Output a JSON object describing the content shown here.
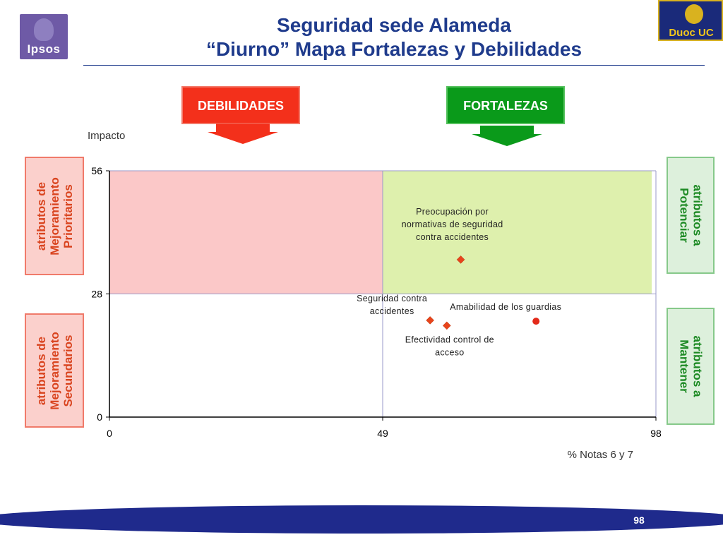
{
  "header": {
    "title_line1": "Seguridad sede Alameda",
    "title_line2": "“Diurno” Mapa Fortalezas y Debilidades"
  },
  "logos": {
    "left": "Ipsos",
    "right": "Duoc UC"
  },
  "banners": {
    "left": "DEBILIDADES",
    "right": "FORTALEZAS"
  },
  "side_boxes": {
    "left_top": [
      "atributos de",
      "Mejoramiento",
      "Prioritarios"
    ],
    "left_bottom": [
      "atributos de",
      "Mejoramiento",
      "Secundarios"
    ],
    "right_top": [
      "atributos a",
      "Potenciar"
    ],
    "right_bottom": [
      "atributos a",
      "Mantener"
    ]
  },
  "colors": {
    "title": "#1f3b8c",
    "debilidades": "#f3301b",
    "fortalezas": "#0a9a1a",
    "quadrant_top_left": "#fbc8c8",
    "quadrant_top_right": "#def0ad",
    "point_diamond": "#e8441c",
    "point_circle": "#e32a1a",
    "footer_band": "#1f2a8c"
  },
  "page_number": "98",
  "chart_data": {
    "type": "scatter",
    "xlabel": "% Notas 6 y 7",
    "ylabel": "Impacto",
    "xlim": [
      0,
      98
    ],
    "ylim": [
      0,
      56
    ],
    "x_ticks": [
      0,
      49,
      98
    ],
    "y_ticks": [
      0,
      28,
      56
    ],
    "x_divider": 49,
    "y_divider": 28,
    "points": [
      {
        "label": "Preocupación por normativas de seguridad contra accidentes",
        "label_lines": [
          "Preocupación por",
          "normativas de seguridad",
          "contra accidentes"
        ],
        "x": 63,
        "y": 35.8,
        "marker": "diamond"
      },
      {
        "label": "Seguridad contra accidentes",
        "label_lines": [
          "Seguridad contra",
          "accidentes"
        ],
        "x": 57.5,
        "y": 22,
        "marker": "diamond"
      },
      {
        "label": "Efectividad control de acceso",
        "label_lines": [
          "Efectividad control de",
          "acceso"
        ],
        "x": 60.5,
        "y": 20.8,
        "marker": "diamond"
      },
      {
        "label": "Amabilidad de los guardias",
        "label_lines": [
          "Amabilidad de los guardias"
        ],
        "x": 76.5,
        "y": 21.8,
        "marker": "circle"
      }
    ]
  }
}
